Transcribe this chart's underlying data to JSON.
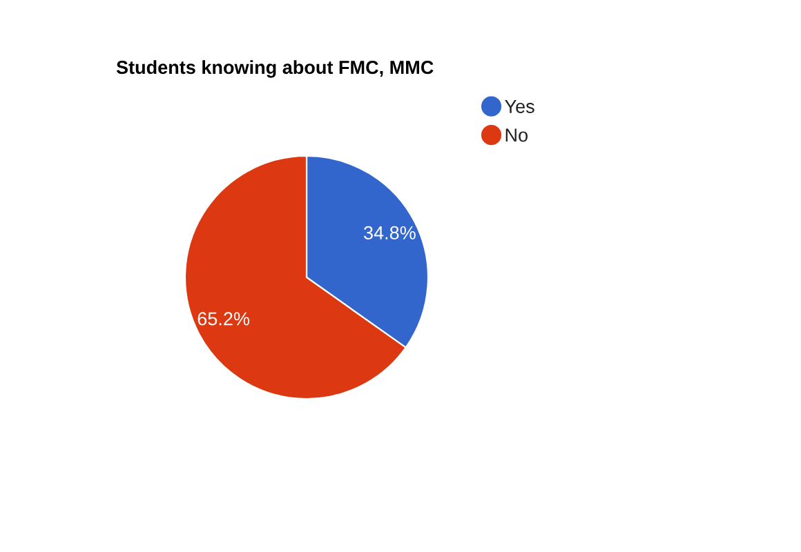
{
  "chart_data": {
    "type": "pie",
    "title": "Students knowing about FMC, MMC",
    "categories": [
      "Yes",
      "No"
    ],
    "values": [
      34.8,
      65.2
    ],
    "colors": [
      "#3366cc",
      "#dc3912"
    ],
    "value_labels": [
      "34.8%",
      "65.2%"
    ],
    "legend": "top right"
  }
}
